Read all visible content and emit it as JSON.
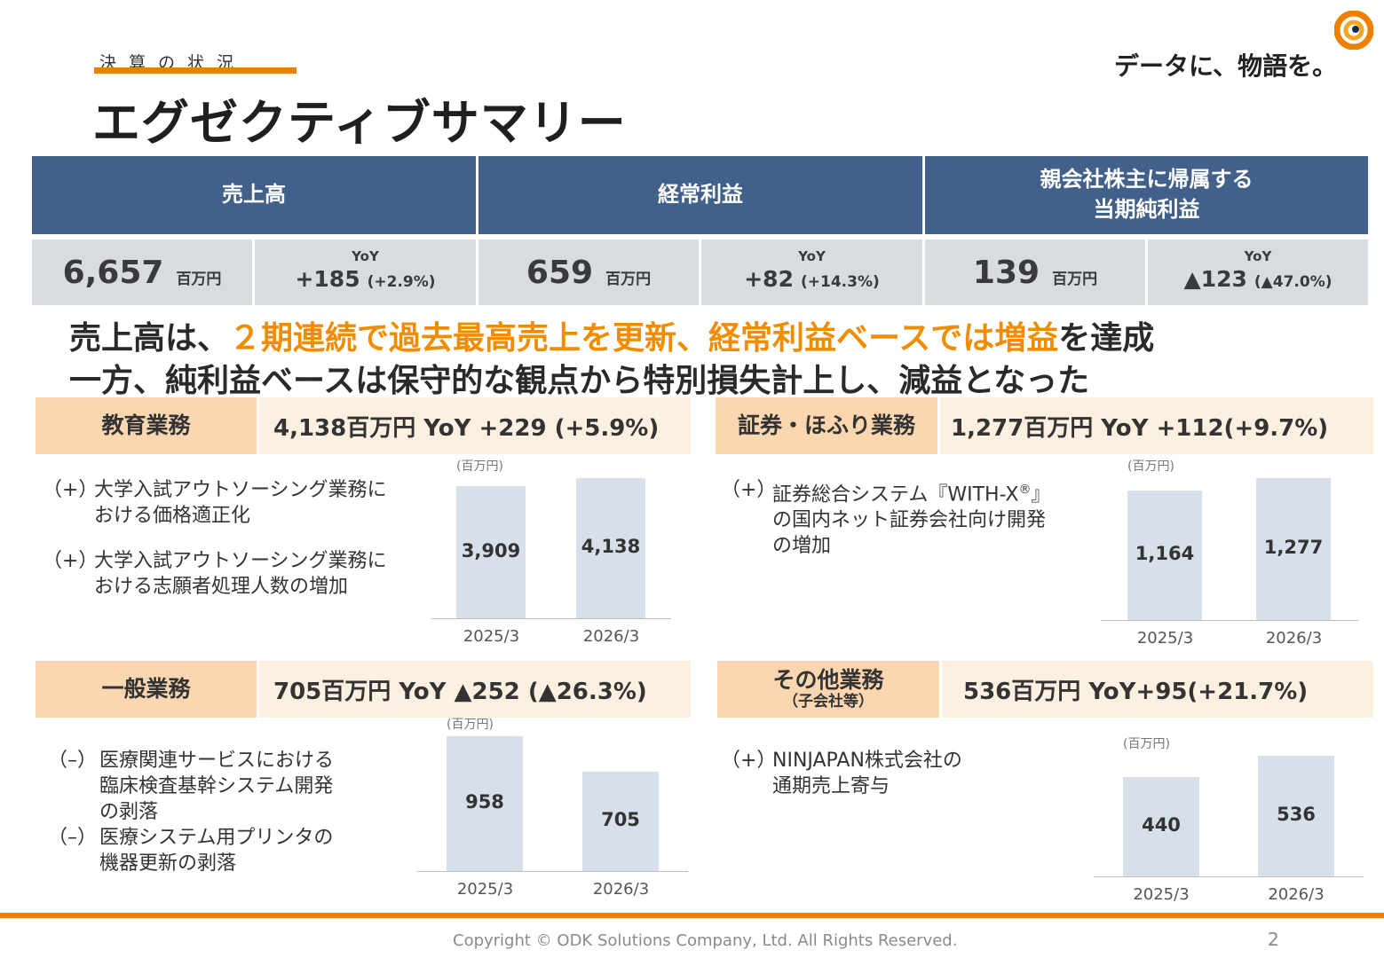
{
  "header": {
    "kicker": "決算の状況",
    "title": "エグゼクティブサマリー",
    "tagline": "データに、物語を。"
  },
  "kpis": [
    {
      "heading": "売上高",
      "value": "6,657",
      "unit": "百万円",
      "yoy_label": "YoY",
      "yoy_value": "+185",
      "yoy_pct": "(+2.9%)"
    },
    {
      "heading": "経常利益",
      "value": "659",
      "unit": "百万円",
      "yoy_label": "YoY",
      "yoy_value": "+82",
      "yoy_pct": "(+14.3%)"
    },
    {
      "heading": "親会社株主に帰属する\n当期純利益",
      "heading_l1": "親会社株主に帰属する",
      "heading_l2": "当期純利益",
      "value": "139",
      "unit": "百万円",
      "yoy_label": "YoY",
      "yoy_value": "▲123",
      "yoy_pct": "(▲47.0%)"
    }
  ],
  "headline": {
    "l1_a": "売上高は、",
    "l1_b": "２期連続で過去最高売上を更新、経常利益ベースでは増益",
    "l1_c": "を達成",
    "l2": "一方、純利益ベースは保守的な観点から特別損失計上し、減益となった"
  },
  "segments": [
    {
      "label": "教育業務",
      "detail": "4,138百万円 YoY +229 (+5.9%)",
      "bullets": [
        {
          "mark": "（+）",
          "text": "大学入試アウトソーシング業務における価格適正化",
          "l1": "大学入試アウトソーシング業務に",
          "l2": "おける価格適正化"
        },
        {
          "mark": "（+）",
          "text": "大学入試アウトソーシング業務における志願者処理人数の増加",
          "l1": "大学入試アウトソーシング業務に",
          "l2": "おける志願者処理人数の増加"
        }
      ],
      "chart_data": {
        "type": "bar",
        "unit": "(百万円)",
        "categories": [
          "2025/3",
          "2026/3"
        ],
        "values": [
          3909,
          4138
        ],
        "labels": [
          "3,909",
          "4,138"
        ]
      }
    },
    {
      "label": "証券・ほふり業務",
      "detail": "1,277百万円 YoY +112(+9.7%)",
      "bullets": [
        {
          "mark": "（+）",
          "l1": "証券総合システム『WITH-X",
          "reg": "®",
          "l1_end": "』",
          "l2": "の国内ネット証券会社向け開発",
          "l3": "の増加"
        }
      ],
      "chart_data": {
        "type": "bar",
        "unit": "(百万円)",
        "categories": [
          "2025/3",
          "2026/3"
        ],
        "values": [
          1164,
          1277
        ],
        "labels": [
          "1,164",
          "1,277"
        ]
      }
    },
    {
      "label": "一般業務",
      "detail": "705百万円 YoY ▲252 (▲26.3%)",
      "bullets": [
        {
          "mark": "（–）",
          "l1": "医療関連サービスにおける",
          "l2": "臨床検査基幹システム開発",
          "l3": "の剥落"
        },
        {
          "mark": "（–）",
          "l1": "医療システム用プリンタの",
          "l2": "機器更新の剥落"
        }
      ],
      "chart_data": {
        "type": "bar",
        "unit": "(百万円)",
        "categories": [
          "2025/3",
          "2026/3"
        ],
        "values": [
          958,
          705
        ],
        "labels": [
          "958",
          "705"
        ]
      }
    },
    {
      "label": "その他業務",
      "sublabel": "（子会社等）",
      "detail": "536百万円  YoY+95(+21.7%)",
      "bullets": [
        {
          "mark": "（+）",
          "l1": "NINJAPAN株式会社の",
          "l2": "通期売上寄与"
        }
      ],
      "chart_data": {
        "type": "bar",
        "unit": "(百万円)",
        "categories": [
          "2025/3",
          "2026/3"
        ],
        "values": [
          440,
          536
        ],
        "labels": [
          "440",
          "536"
        ]
      }
    }
  ],
  "footer": {
    "copyright": "Copyright © ODK Solutions Company, Ltd. All Rights Reserved.",
    "page": "2"
  },
  "colors": {
    "accent": "#ee7f00",
    "header_blue": "#41618a",
    "bar": "#d6dfea",
    "seg_label_bg": "#fad7b0",
    "seg_detail_bg": "#fdf0e1"
  }
}
